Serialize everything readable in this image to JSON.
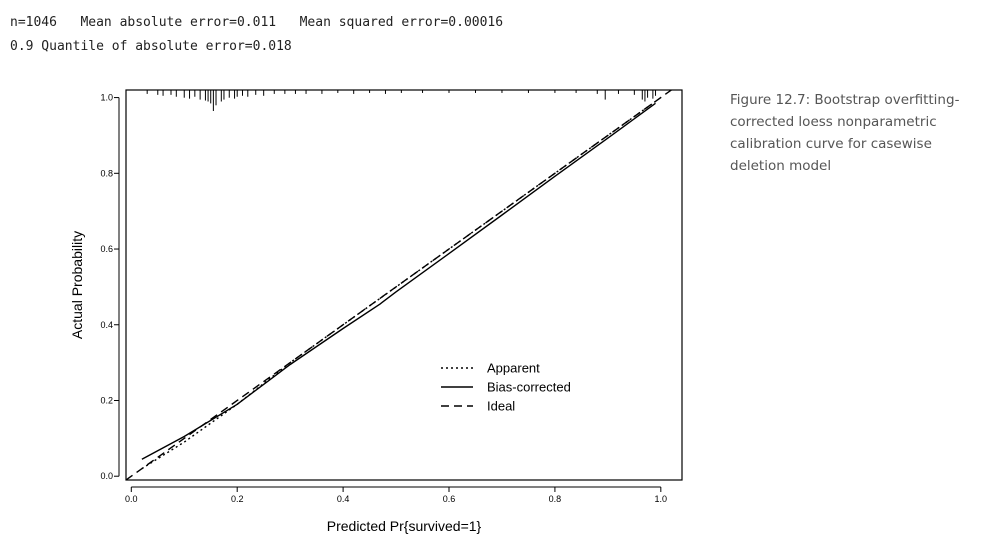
{
  "console": {
    "line1": "n=1046   Mean absolute error=0.011   Mean squared error=0.00016",
    "line2": "0.9 Quantile of absolute error=0.018"
  },
  "caption": "Figure 12.7: Bootstrap overfitting-corrected loess nonparametric calibration curve for casewise deletion model",
  "chart_data": {
    "type": "line",
    "title": "",
    "xlabel": "Predicted Pr{survived=1}",
    "ylabel": "Actual Probability",
    "xlim": [
      -0.01,
      1.04
    ],
    "ylim": [
      -0.01,
      1.02
    ],
    "xticks": [
      0.0,
      0.2,
      0.4,
      0.6,
      0.8,
      1.0
    ],
    "xtick_labels": [
      "0.0",
      "0.2",
      "0.4",
      "0.6",
      "0.8",
      "1.0"
    ],
    "yticks": [
      0.0,
      0.2,
      0.4,
      0.6,
      0.8,
      1.0
    ],
    "ytick_labels": [
      "0.0",
      "0.2",
      "0.4",
      "0.6",
      "0.8",
      "1.0"
    ],
    "grid": false,
    "legend_position": "bottom-right",
    "series": [
      {
        "name": "Apparent",
        "style": "dotted",
        "color": "#000000",
        "x": [
          0.02,
          0.1,
          0.2,
          0.3,
          0.4,
          0.5,
          0.6,
          0.7,
          0.8,
          0.9,
          0.99
        ],
        "y": [
          0.02,
          0.09,
          0.19,
          0.3,
          0.4,
          0.5,
          0.6,
          0.7,
          0.8,
          0.9,
          0.99
        ]
      },
      {
        "name": "Bias-corrected",
        "style": "solid",
        "color": "#000000",
        "x": [
          0.02,
          0.1,
          0.2,
          0.3,
          0.4,
          0.47,
          0.5,
          0.6,
          0.7,
          0.8,
          0.9,
          0.99
        ],
        "y": [
          0.045,
          0.105,
          0.19,
          0.295,
          0.39,
          0.455,
          0.487,
          0.588,
          0.69,
          0.792,
          0.893,
          0.985
        ]
      },
      {
        "name": "Ideal",
        "style": "dashed",
        "color": "#000000",
        "x": [
          -0.01,
          1.04
        ],
        "y": [
          -0.01,
          1.04
        ]
      }
    ],
    "rug": {
      "description_values": "predicted probabilities shown as tick marks along the top axis",
      "x": [
        0.03,
        0.05,
        0.06,
        0.075,
        0.085,
        0.1,
        0.11,
        0.12,
        0.13,
        0.14,
        0.145,
        0.15,
        0.155,
        0.16,
        0.17,
        0.175,
        0.185,
        0.195,
        0.2,
        0.21,
        0.22,
        0.235,
        0.25,
        0.27,
        0.29,
        0.31,
        0.33,
        0.36,
        0.39,
        0.42,
        0.45,
        0.48,
        0.51,
        0.55,
        0.6,
        0.65,
        0.7,
        0.75,
        0.8,
        0.84,
        0.88,
        0.895,
        0.92,
        0.95,
        0.965,
        0.97,
        0.975,
        0.985,
        0.99
      ],
      "count": [
        2,
        3,
        4,
        3,
        5,
        6,
        7,
        5,
        8,
        9,
        10,
        12,
        20,
        14,
        10,
        8,
        6,
        7,
        5,
        4,
        5,
        3,
        4,
        2,
        2,
        2,
        2,
        2,
        1,
        2,
        1,
        2,
        1,
        1,
        1,
        1,
        1,
        1,
        1,
        1,
        2,
        8,
        2,
        3,
        8,
        10,
        6,
        7,
        4
      ]
    }
  }
}
